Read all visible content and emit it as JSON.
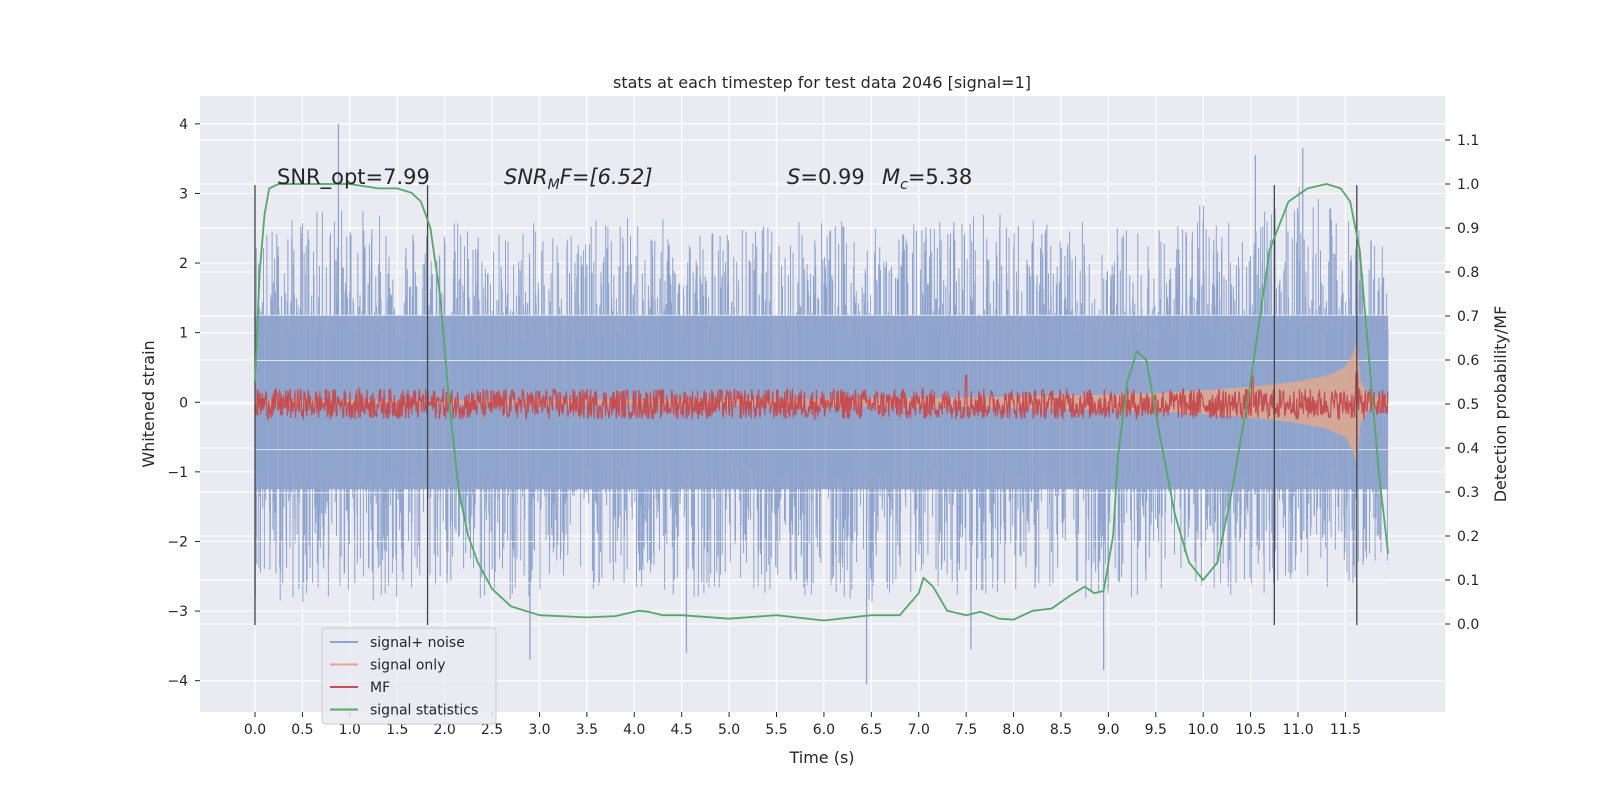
{
  "chart_data": {
    "type": "line",
    "title": "stats at each timestep for test data 2046 [signal=1]",
    "xlabel": "Time (s)",
    "ylabel_left": "Whitened strain",
    "ylabel_right": "Detection probability/MF",
    "xlim": [
      -0.58,
      12.55
    ],
    "ylim_left": [
      -4.45,
      4.4
    ],
    "ylim_right": [
      -0.2,
      1.2
    ],
    "x_ticks": [
      "0.0",
      "0.5",
      "1.0",
      "1.5",
      "2.0",
      "2.5",
      "3.0",
      "3.5",
      "4.0",
      "4.5",
      "5.0",
      "5.5",
      "6.0",
      "6.5",
      "7.0",
      "7.5",
      "8.0",
      "8.5",
      "9.0",
      "9.5",
      "10.0",
      "10.5",
      "11.0",
      "11.5"
    ],
    "y_left_ticks": [
      "4",
      "3",
      "2",
      "1",
      "0",
      "−1",
      "−2",
      "−3",
      "−4"
    ],
    "y_right_ticks": [
      "1.1",
      "1.0",
      "0.9",
      "0.8",
      "0.7",
      "0.6",
      "0.5",
      "0.4",
      "0.3",
      "0.2",
      "0.1",
      "0.0"
    ],
    "grid": true,
    "legend_position": "lower-left",
    "annotations": {
      "snr_opt": "SNR_opt=7.99",
      "snr_mf_base": "SNR",
      "snr_mf_sub": "M",
      "snr_mf_rest": "F=[6.52]",
      "s_var": "S",
      "s_val": "=0.99",
      "mc_var": "M",
      "mc_sub": "c",
      "mc_val": "=5.38"
    },
    "vertical_markers": [
      0.0,
      1.82,
      10.75,
      11.62
    ],
    "series": [
      {
        "name": "signal+ noise",
        "color": "#8fa4cc",
        "x_range": [
          0.0,
          11.95
        ],
        "envelope_upper": {
          "x": [
            0.0,
            0.5,
            1.0,
            1.5,
            2.0,
            2.5,
            3.0,
            3.5,
            4.0,
            4.5,
            5.0,
            5.5,
            6.0,
            6.5,
            7.0,
            7.5,
            8.0,
            8.5,
            9.0,
            9.5,
            10.0,
            10.5,
            11.0,
            11.5,
            11.95
          ],
          "y": [
            2.5,
            2.7,
            2.9,
            2.6,
            2.7,
            2.5,
            2.6,
            2.6,
            2.7,
            2.6,
            2.5,
            2.6,
            2.7,
            2.5,
            2.6,
            2.8,
            2.7,
            2.6,
            2.6,
            2.5,
            2.9,
            2.6,
            3.1,
            2.7,
            2.4
          ]
        },
        "envelope_lower": {
          "x": [
            0.0,
            0.5,
            1.0,
            1.5,
            2.0,
            2.5,
            3.0,
            3.5,
            4.0,
            4.5,
            5.0,
            5.5,
            6.0,
            6.5,
            7.0,
            7.5,
            8.0,
            8.5,
            9.0,
            9.5,
            10.0,
            10.5,
            11.0,
            11.5,
            11.95
          ],
          "y": [
            -2.8,
            -2.9,
            -2.8,
            -2.9,
            -2.7,
            -3.0,
            -2.8,
            -2.7,
            -2.8,
            -2.9,
            -2.6,
            -2.8,
            -2.9,
            -2.9,
            -2.7,
            -2.8,
            -2.7,
            -2.8,
            -2.9,
            -2.7,
            -2.8,
            -2.8,
            -2.6,
            -2.7,
            -2.3
          ]
        },
        "spikes": [
          {
            "x": 0.88,
            "y": 4.0
          },
          {
            "x": 6.45,
            "y": -4.05
          },
          {
            "x": 2.9,
            "y": -3.7
          },
          {
            "x": 8.95,
            "y": -3.85
          },
          {
            "x": 11.05,
            "y": 3.65
          },
          {
            "x": 10.55,
            "y": 3.55
          },
          {
            "x": 4.55,
            "y": -3.6
          },
          {
            "x": 7.55,
            "y": -3.55
          }
        ]
      },
      {
        "name": "signal only",
        "color": "#e1a98f",
        "x": [
          0.0,
          2.0,
          4.0,
          6.0,
          7.0,
          8.0,
          9.0,
          9.5,
          10.0,
          10.5,
          11.0,
          11.3,
          11.5,
          11.58,
          11.62,
          11.66,
          11.75,
          11.95
        ],
        "upper": [
          0.03,
          0.03,
          0.04,
          0.05,
          0.06,
          0.08,
          0.11,
          0.13,
          0.17,
          0.22,
          0.3,
          0.38,
          0.5,
          0.7,
          0.9,
          0.3,
          0.1,
          0.05
        ],
        "lower": [
          -0.03,
          -0.03,
          -0.04,
          -0.05,
          -0.06,
          -0.08,
          -0.11,
          -0.13,
          -0.17,
          -0.22,
          -0.3,
          -0.38,
          -0.5,
          -0.7,
          -0.9,
          -0.3,
          -0.1,
          -0.05
        ]
      },
      {
        "name": "MF",
        "color": "#c44e52",
        "x_range": [
          0.0,
          11.95
        ],
        "center": 0.5,
        "amplitude": 0.035,
        "peaks": [
          {
            "x": 7.5,
            "y": 0.565
          },
          {
            "x": 10.52,
            "y": 0.565
          },
          {
            "x": 11.62,
            "y": 0.57
          }
        ]
      },
      {
        "name": "signal statistics",
        "color": "#55a868",
        "x": [
          0.0,
          0.05,
          0.1,
          0.15,
          0.25,
          0.5,
          1.0,
          1.3,
          1.5,
          1.65,
          1.75,
          1.85,
          1.95,
          2.05,
          2.15,
          2.25,
          2.35,
          2.5,
          2.7,
          3.0,
          3.5,
          3.8,
          4.0,
          4.05,
          4.15,
          4.3,
          4.5,
          5.0,
          5.5,
          6.0,
          6.5,
          6.8,
          7.0,
          7.05,
          7.15,
          7.3,
          7.5,
          7.65,
          7.85,
          8.0,
          8.2,
          8.4,
          8.6,
          8.75,
          8.85,
          8.95,
          9.05,
          9.1,
          9.2,
          9.3,
          9.4,
          9.55,
          9.7,
          9.85,
          10.0,
          10.15,
          10.3,
          10.5,
          10.7,
          10.9,
          11.1,
          11.3,
          11.45,
          11.55,
          11.65,
          11.75,
          11.85,
          11.95
        ],
        "y": [
          0.55,
          0.8,
          0.93,
          0.99,
          1.0,
          1.0,
          1.0,
          0.99,
          0.99,
          0.98,
          0.96,
          0.9,
          0.75,
          0.5,
          0.3,
          0.2,
          0.14,
          0.08,
          0.04,
          0.02,
          0.015,
          0.018,
          0.028,
          0.03,
          0.028,
          0.02,
          0.02,
          0.012,
          0.02,
          0.008,
          0.02,
          0.02,
          0.07,
          0.105,
          0.085,
          0.03,
          0.02,
          0.028,
          0.012,
          0.01,
          0.03,
          0.035,
          0.065,
          0.085,
          0.07,
          0.075,
          0.2,
          0.38,
          0.55,
          0.62,
          0.6,
          0.42,
          0.25,
          0.14,
          0.1,
          0.14,
          0.3,
          0.55,
          0.85,
          0.96,
          0.99,
          1.0,
          0.99,
          0.96,
          0.85,
          0.6,
          0.35,
          0.16
        ]
      }
    ]
  }
}
